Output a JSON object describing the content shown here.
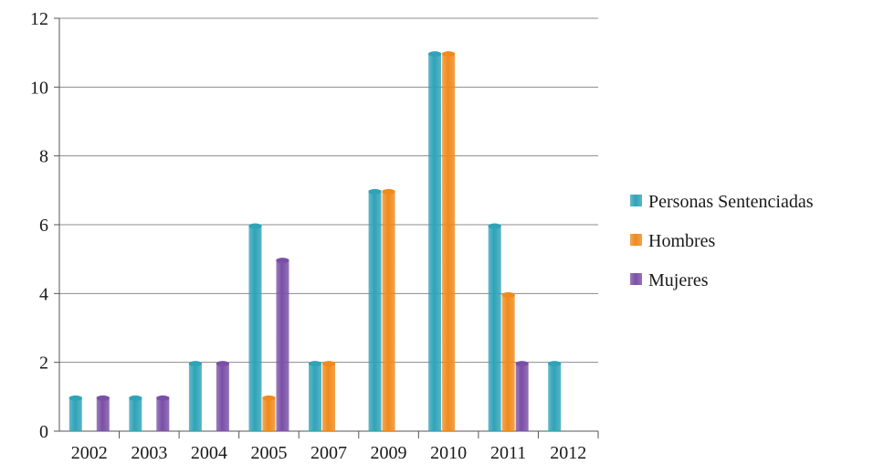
{
  "chart_data": {
    "type": "bar",
    "categories": [
      "2002",
      "2003",
      "2004",
      "2005",
      "2007",
      "2009",
      "2010",
      "2011",
      "2012"
    ],
    "series": [
      {
        "name": "Personas Sentenciadas",
        "color": "#2fa3b8",
        "values": [
          1,
          1,
          2,
          6,
          2,
          7,
          11,
          6,
          2
        ]
      },
      {
        "name": "Hombres",
        "color": "#f08a1c",
        "values": [
          0,
          0,
          0,
          1,
          2,
          7,
          11,
          4,
          0
        ]
      },
      {
        "name": "Mujeres",
        "color": "#7a4fa6",
        "values": [
          1,
          1,
          2,
          5,
          0,
          0,
          0,
          2,
          0
        ]
      }
    ],
    "ylim": [
      0,
      12
    ],
    "yticks": [
      0,
      2,
      4,
      6,
      8,
      10,
      12
    ],
    "grid": true,
    "legend_position": "right",
    "title": "",
    "xlabel": "",
    "ylabel": ""
  }
}
